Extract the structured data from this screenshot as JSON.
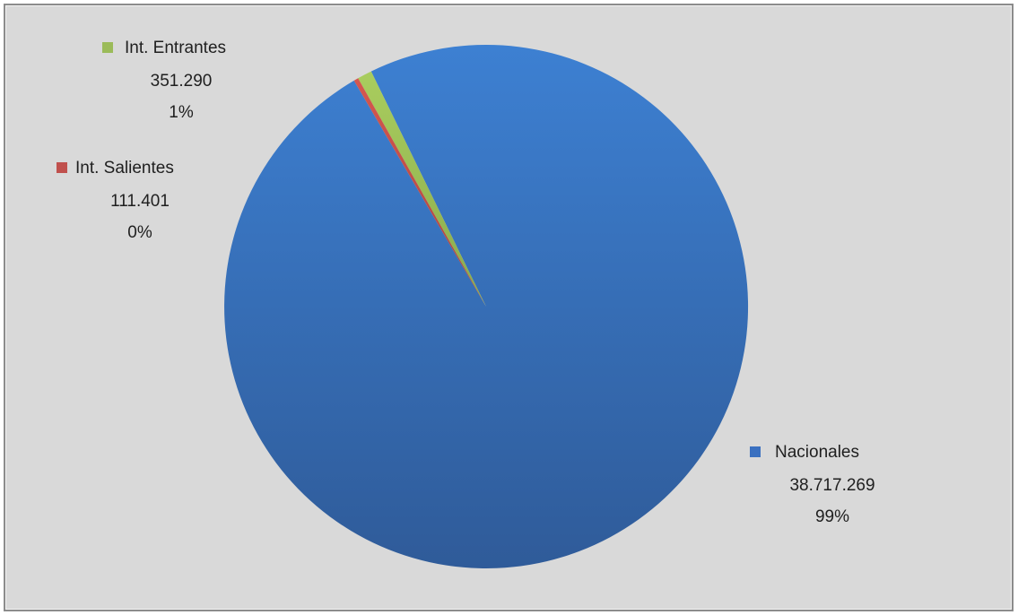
{
  "chart_data": {
    "type": "pie",
    "title": "",
    "categories": [
      "Nacionales",
      "Int. Entrantes",
      "Int. Salientes"
    ],
    "values": [
      38717269,
      351290,
      111401
    ],
    "value_labels": [
      "38.717.269",
      "351.290",
      "111.401"
    ],
    "percent_labels": [
      "99%",
      "1%",
      "0%"
    ],
    "colors": [
      "#3a70c0",
      "#9bbb59",
      "#c0504d"
    ],
    "start_angle_deg": -30.3,
    "legend_placement": "data labels beside slices"
  }
}
